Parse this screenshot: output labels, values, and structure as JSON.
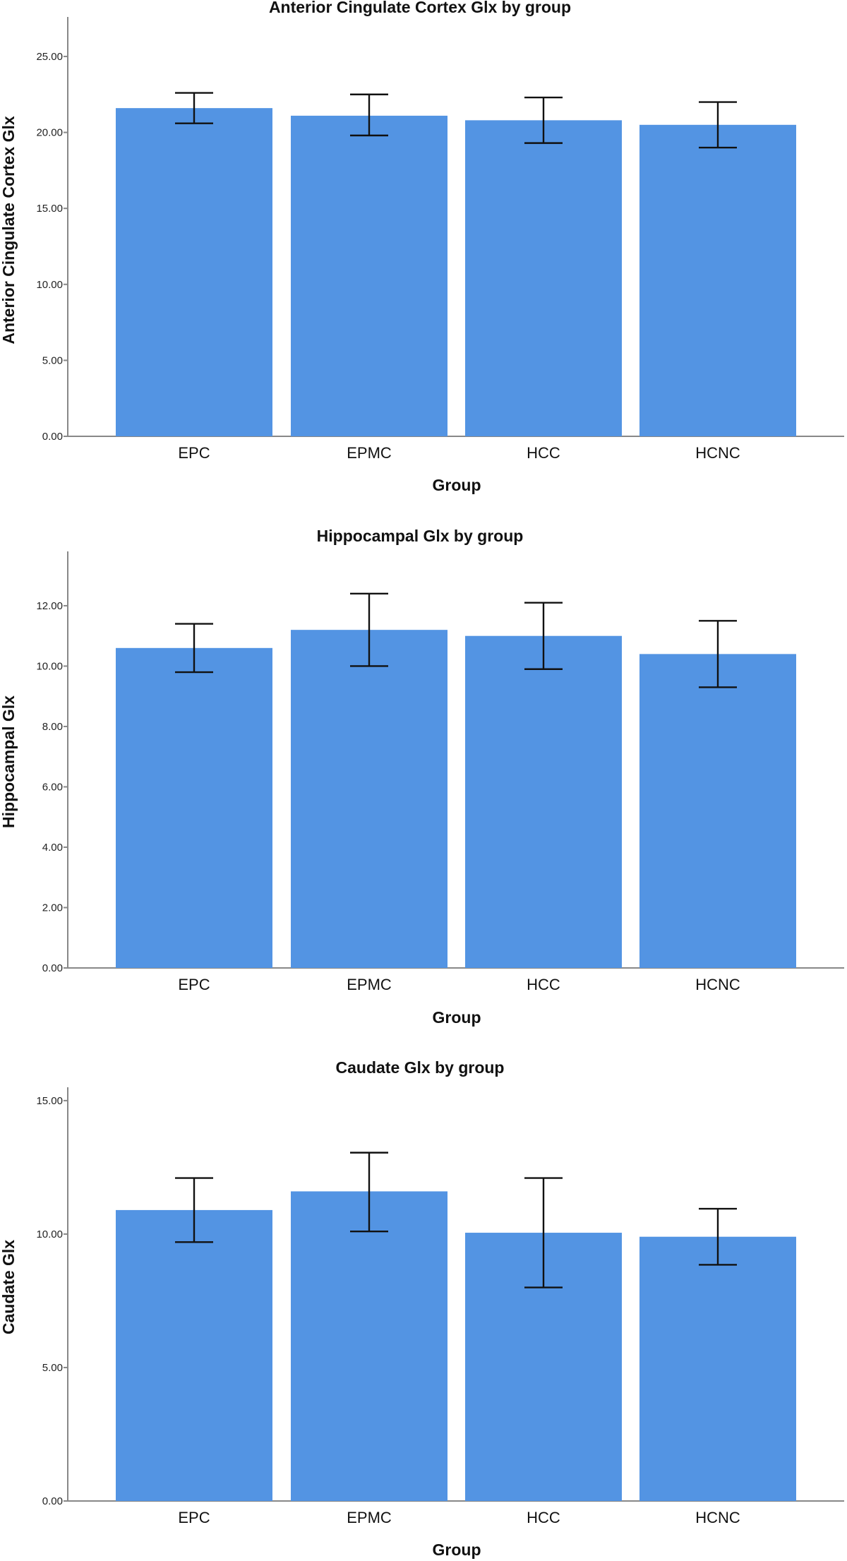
{
  "colors": {
    "bar": "#5394e3",
    "error_bar": "#111111",
    "axis": "#888888"
  },
  "chart_data": [
    {
      "type": "bar",
      "title": "Anterior Cingulate Cortex Glx by group",
      "xlabel": "Group",
      "ylabel": "Anterior Cingulate Cortex Glx",
      "categories": [
        "EPC",
        "EPMC",
        "HCC",
        "HCNC"
      ],
      "values": [
        21.6,
        21.1,
        20.8,
        20.5
      ],
      "error_low": [
        20.6,
        19.8,
        19.3,
        19.0
      ],
      "error_high": [
        22.6,
        22.5,
        22.3,
        22.0
      ],
      "ylim": [
        0,
        27.6
      ],
      "yticks": [
        0,
        5,
        10,
        15,
        20,
        25
      ],
      "ytick_labels": [
        "0.00",
        "5.00",
        "10.00",
        "15.00",
        "20.00",
        "25.00"
      ]
    },
    {
      "type": "bar",
      "title": "Hippocampal Glx by group",
      "xlabel": "Group",
      "ylabel": "Hippocampal Glx",
      "categories": [
        "EPC",
        "EPMC",
        "HCC",
        "HCNC"
      ],
      "values": [
        10.6,
        11.2,
        11.0,
        10.4
      ],
      "error_low": [
        9.8,
        10.0,
        9.9,
        9.3
      ],
      "error_high": [
        11.4,
        12.4,
        12.1,
        11.5
      ],
      "ylim": [
        0,
        13.8
      ],
      "yticks": [
        0,
        2,
        4,
        6,
        8,
        10,
        12
      ],
      "ytick_labels": [
        "0.00",
        "2.00",
        "4.00",
        "6.00",
        "8.00",
        "10.00",
        "12.00"
      ]
    },
    {
      "type": "bar",
      "title": "Caudate Glx by group",
      "xlabel": "Group",
      "ylabel": "Caudate Glx",
      "categories": [
        "EPC",
        "EPMC",
        "HCC",
        "HCNC"
      ],
      "values": [
        10.9,
        11.6,
        10.05,
        9.9
      ],
      "error_low": [
        9.7,
        10.1,
        8.0,
        8.85
      ],
      "error_high": [
        12.1,
        13.05,
        12.1,
        10.95
      ],
      "ylim": [
        0,
        15.5
      ],
      "yticks": [
        0,
        5,
        10,
        15
      ],
      "ytick_labels": [
        "0.00",
        "5.00",
        "10.00",
        "15.00"
      ]
    }
  ]
}
